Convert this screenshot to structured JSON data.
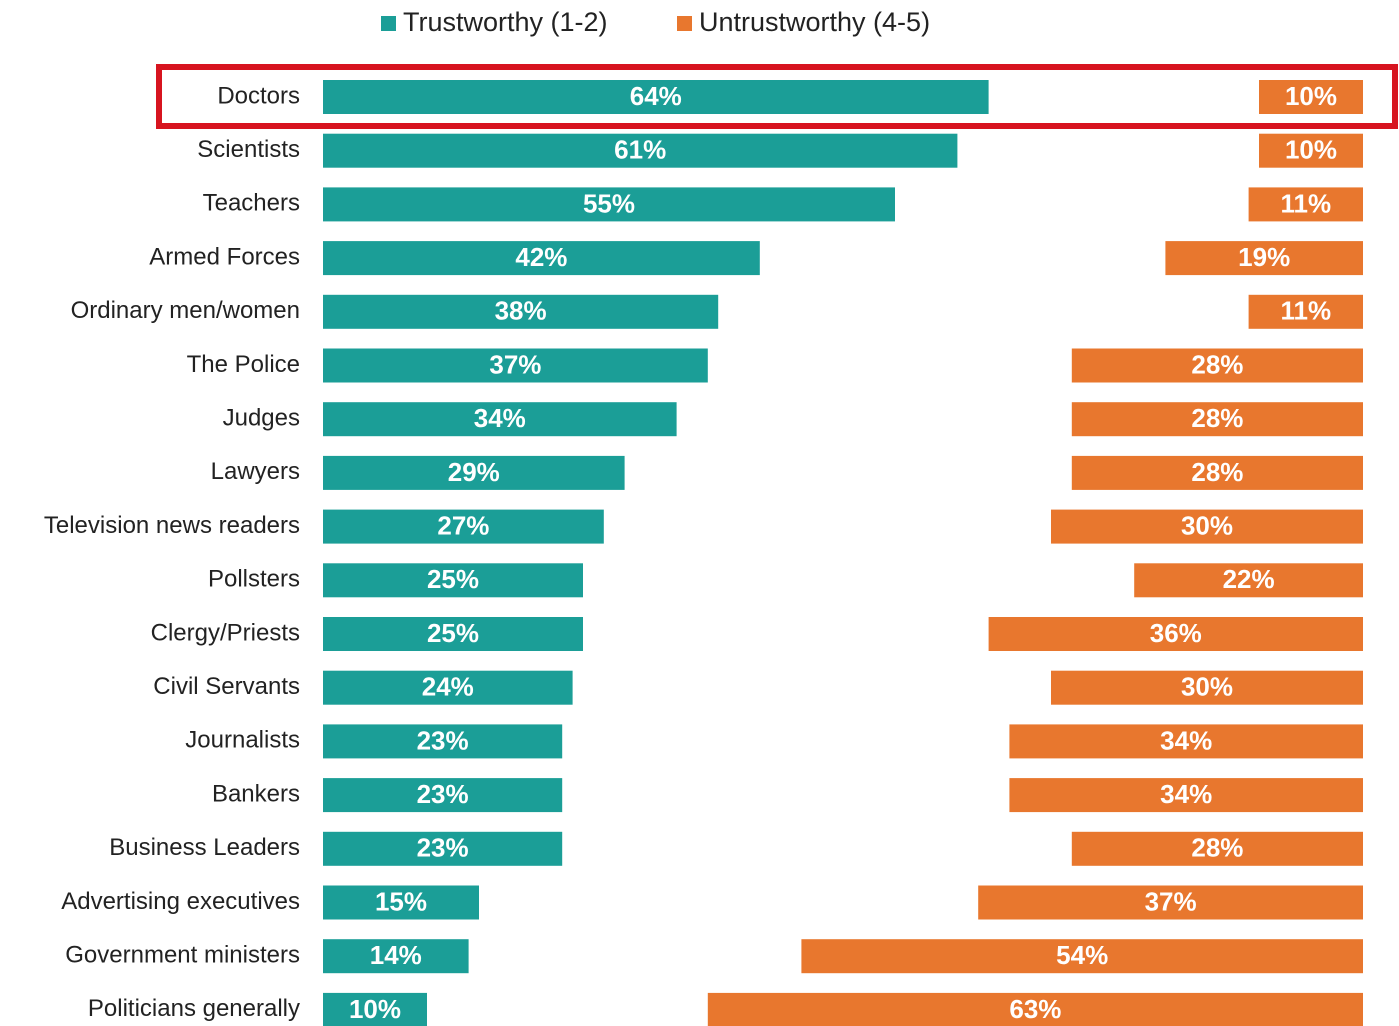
{
  "chart_data": {
    "type": "diverging_bar",
    "categories": [
      "Doctors",
      "Scientists",
      "Teachers",
      "Armed Forces",
      "Ordinary men/women",
      "The Police",
      "Judges",
      "Lawyers",
      "Television news readers",
      "Pollsters",
      "Clergy/Priests",
      "Civil Servants",
      "Journalists",
      "Bankers",
      "Business Leaders",
      "Advertising executives",
      "Government ministers",
      "Politicians generally"
    ],
    "series": [
      {
        "name": "Trustworthy (1-2)",
        "color": "#1b9e97",
        "values": [
          64,
          61,
          55,
          42,
          38,
          37,
          34,
          29,
          27,
          25,
          25,
          24,
          23,
          23,
          23,
          15,
          14,
          10
        ],
        "value_labels": [
          "64%",
          "61%",
          "55%",
          "42%",
          "38%",
          "37%",
          "34%",
          "29%",
          "27%",
          "25%",
          "25%",
          "24%",
          "23%",
          "23%",
          "23%",
          "15%",
          "14%",
          "10%"
        ]
      },
      {
        "name": "Untrustworthy (4-5)",
        "color": "#e8772e",
        "values": [
          10,
          10,
          11,
          19,
          11,
          28,
          28,
          28,
          30,
          22,
          36,
          30,
          34,
          34,
          28,
          37,
          54,
          63
        ],
        "value_labels": [
          "10%",
          "10%",
          "11%",
          "19%",
          "11%",
          "28%",
          "28%",
          "28%",
          "30%",
          "22%",
          "36%",
          "30%",
          "34%",
          "34%",
          "28%",
          "37%",
          "54%",
          "63%"
        ]
      }
    ],
    "xlim": [
      0,
      100
    ]
  }
}
